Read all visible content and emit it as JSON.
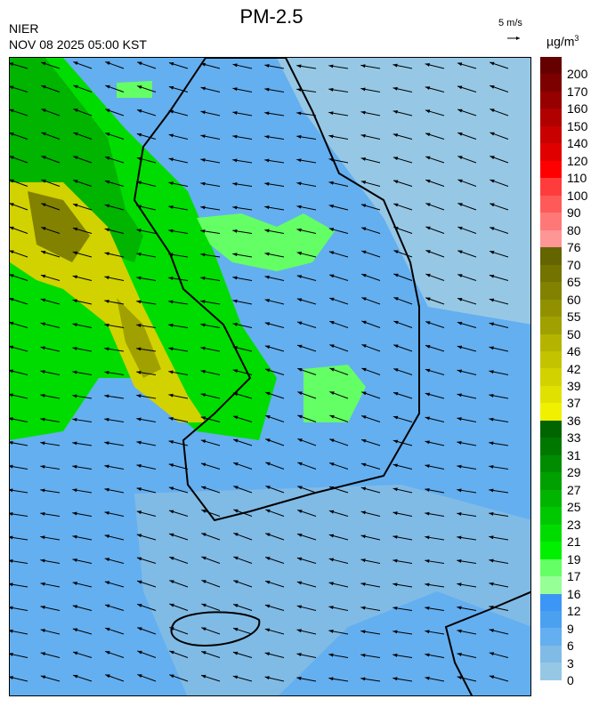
{
  "header": {
    "title": "PM-2.5",
    "agency": "NIER",
    "datetime": "NOV 08 2025 05:00 KST",
    "wind_scale_label": "5 m/s",
    "unit": "µg/m",
    "unit_exponent": "3"
  },
  "map": {
    "variable": "PM-2.5 concentration with wind vectors",
    "wind_direction": "easterly / east-northeasterly",
    "background_color": "#80bbe6"
  },
  "legend": {
    "labels": [
      "200",
      "170",
      "160",
      "150",
      "140",
      "120",
      "110",
      "100",
      "90",
      "80",
      "76",
      "70",
      "65",
      "60",
      "55",
      "50",
      "46",
      "42",
      "39",
      "37",
      "36",
      "33",
      "31",
      "29",
      "27",
      "25",
      "23",
      "21",
      "19",
      "17",
      "16",
      "12",
      "9",
      "6",
      "3",
      "0"
    ],
    "colors": [
      "#640000",
      "#7d0000",
      "#960000",
      "#b00000",
      "#c80000",
      "#e10000",
      "#ff0000",
      "#ff3c3c",
      "#ff5a5a",
      "#ff7878",
      "#ff9696",
      "#646400",
      "#737300",
      "#828200",
      "#919100",
      "#a0a000",
      "#b4b400",
      "#c3c300",
      "#d2d200",
      "#e1e100",
      "#f0f000",
      "#006400",
      "#007800",
      "#008c00",
      "#00a000",
      "#00b400",
      "#00c800",
      "#00dc00",
      "#00f000",
      "#64ff64",
      "#96ff96",
      "#3c96f5",
      "#4ba0f0",
      "#64aff0",
      "#80bbe6",
      "#96c8e6"
    ]
  }
}
